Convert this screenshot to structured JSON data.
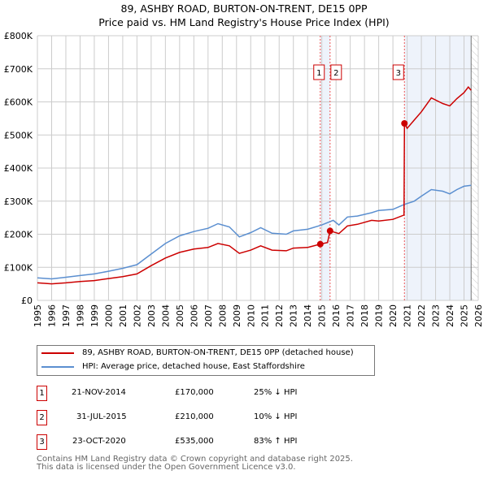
{
  "chart_data": {
    "type": "line",
    "title": "89, ASHBY ROAD, BURTON-ON-TRENT, DE15 0PP",
    "subtitle": "Price paid vs. HM Land Registry's House Price Index (HPI)",
    "xlim": [
      1995,
      2026
    ],
    "ylim": [
      0,
      800000
    ],
    "x_ticks": [
      "1995",
      "1996",
      "1997",
      "1998",
      "1999",
      "2000",
      "2001",
      "2002",
      "2003",
      "2004",
      "2005",
      "2006",
      "2007",
      "2008",
      "2009",
      "2010",
      "2011",
      "2012",
      "2013",
      "2014",
      "2015",
      "2016",
      "2017",
      "2018",
      "2019",
      "2020",
      "2021",
      "2022",
      "2023",
      "2024",
      "2025",
      "2026"
    ],
    "y_ticks": [
      {
        "v": 0,
        "label": "£0"
      },
      {
        "v": 100000,
        "label": "£100K"
      },
      {
        "v": 200000,
        "label": "£200K"
      },
      {
        "v": 300000,
        "label": "£300K"
      },
      {
        "v": 400000,
        "label": "£400K"
      },
      {
        "v": 500000,
        "label": "£500K"
      },
      {
        "v": 600000,
        "label": "£600K"
      },
      {
        "v": 700000,
        "label": "£700K"
      },
      {
        "v": 800000,
        "label": "£800K"
      }
    ],
    "grid": true,
    "series": [
      {
        "name": "89, ASHBY ROAD, BURTON-ON-TRENT, DE15 0PP (detached house)",
        "color": "#cc0000",
        "x": [
          1995,
          1996,
          1997,
          1998,
          1999,
          2000,
          2001,
          2002,
          2003,
          2004,
          2005,
          2006,
          2007,
          2007.7,
          2008.5,
          2009.2,
          2010,
          2010.7,
          2011.5,
          2012.5,
          2013,
          2014,
          2014.9,
          2015.4,
          2015.58,
          2016.2,
          2016.8,
          2017.5,
          2018.5,
          2019,
          2020,
          2020.78,
          2020.81,
          2021,
          2021.5,
          2022,
          2022.7,
          2023.5,
          2024,
          2024.5,
          2025,
          2025.3,
          2025.5
        ],
        "y": [
          53000,
          50000,
          53000,
          57000,
          60000,
          66000,
          72000,
          80000,
          105000,
          128000,
          145000,
          155000,
          160000,
          172000,
          165000,
          142000,
          152000,
          165000,
          152000,
          150000,
          158000,
          160000,
          170000,
          175000,
          210000,
          202000,
          225000,
          230000,
          242000,
          240000,
          245000,
          258000,
          535000,
          520000,
          545000,
          570000,
          612000,
          595000,
          588000,
          610000,
          628000,
          645000,
          635000
        ]
      },
      {
        "name": "HPI: Average price, detached house, East Staffordshire",
        "color": "#5b8fd0",
        "x": [
          1995,
          1996,
          1997,
          1998,
          1999,
          2000,
          2001,
          2002,
          2003,
          2004,
          2005,
          2006,
          2007,
          2007.7,
          2008.5,
          2009.2,
          2010,
          2010.7,
          2011.5,
          2012.5,
          2013,
          2014,
          2015,
          2015.8,
          2016.2,
          2016.8,
          2017.5,
          2018.5,
          2019,
          2020,
          2020.8,
          2021.5,
          2022,
          2022.7,
          2023.5,
          2024,
          2024.5,
          2025,
          2025.5
        ],
        "y": [
          68000,
          65000,
          70000,
          75000,
          80000,
          88000,
          97000,
          108000,
          140000,
          172000,
          195000,
          208000,
          218000,
          232000,
          222000,
          192000,
          205000,
          220000,
          203000,
          200000,
          210000,
          215000,
          228000,
          242000,
          228000,
          252000,
          255000,
          265000,
          272000,
          275000,
          290000,
          300000,
          315000,
          335000,
          330000,
          322000,
          335000,
          345000,
          348000
        ]
      }
    ],
    "sales": [
      {
        "id": "1",
        "x": 2014.89,
        "price": 170000
      },
      {
        "id": "2",
        "x": 2015.58,
        "price": 210000
      },
      {
        "id": "3",
        "x": 2020.81,
        "price": 535000
      }
    ]
  },
  "legend": [
    {
      "label": "89, ASHBY ROAD, BURTON-ON-TRENT, DE15 0PP (detached house)",
      "color": "#cc0000"
    },
    {
      "label": "HPI: Average price, detached house, East Staffordshire",
      "color": "#5b8fd0"
    }
  ],
  "table": [
    {
      "id": "1",
      "date": "21-NOV-2014",
      "price": "£170,000",
      "hpi": "25% ↓ HPI"
    },
    {
      "id": "2",
      "date": "31-JUL-2015",
      "price": "£210,000",
      "hpi": "10% ↓ HPI"
    },
    {
      "id": "3",
      "date": "23-OCT-2020",
      "price": "£535,000",
      "hpi": "83% ↑ HPI"
    }
  ],
  "footer": [
    "Contains HM Land Registry data © Crown copyright and database right 2025.",
    "This data is licensed under the Open Government Licence v3.0."
  ]
}
